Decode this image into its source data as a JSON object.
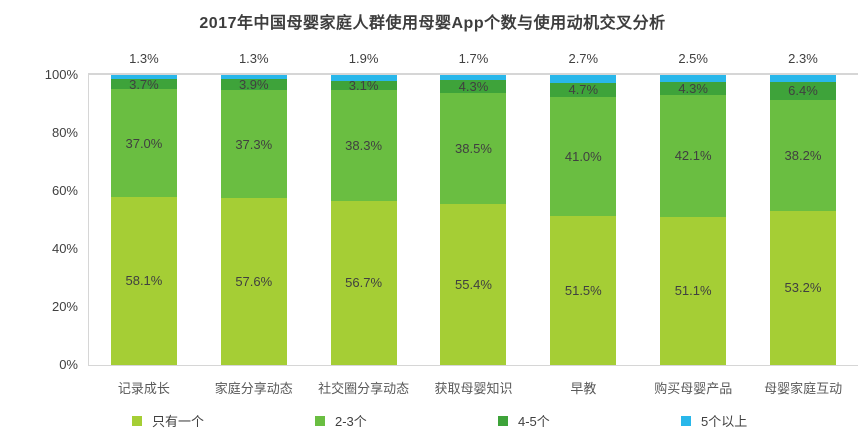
{
  "chart_data": {
    "type": "bar",
    "stacked": true,
    "title": "2017年中国母婴家庭人群使用母婴App个数与使用动机交叉分析",
    "categories": [
      "记录成长",
      "家庭分享动态",
      "社交圈分享动态",
      "获取母婴知识",
      "早教",
      "购买母婴产品",
      "母婴家庭互动"
    ],
    "series": [
      {
        "name": "只有一个",
        "color": "#a5ce35",
        "values": [
          58.1,
          57.6,
          56.7,
          55.4,
          51.5,
          51.1,
          53.2
        ]
      },
      {
        "name": "2-3个",
        "color": "#6abe41",
        "values": [
          37.0,
          37.3,
          38.3,
          38.5,
          41.0,
          42.1,
          38.2
        ]
      },
      {
        "name": "4-5个",
        "color": "#3ea33a",
        "values": [
          3.7,
          3.9,
          3.1,
          4.3,
          4.7,
          4.3,
          6.4
        ]
      },
      {
        "name": "5个以上",
        "color": "#29b7ea",
        "values": [
          1.3,
          1.3,
          1.9,
          1.7,
          2.7,
          2.5,
          2.3
        ]
      }
    ],
    "y_axis": {
      "min": 0,
      "max": 100,
      "ticks": [
        "0%",
        "20%",
        "40%",
        "60%",
        "80%",
        "100%"
      ]
    },
    "value_suffix": "%",
    "grid": "top-line-only",
    "legend_position": "bottom",
    "colors": {
      "axis_line": "#d6d6d6",
      "label_text": "#404040",
      "category_text": "#595959",
      "title_text": "#3d3d3d",
      "background": "#ffffff"
    }
  }
}
